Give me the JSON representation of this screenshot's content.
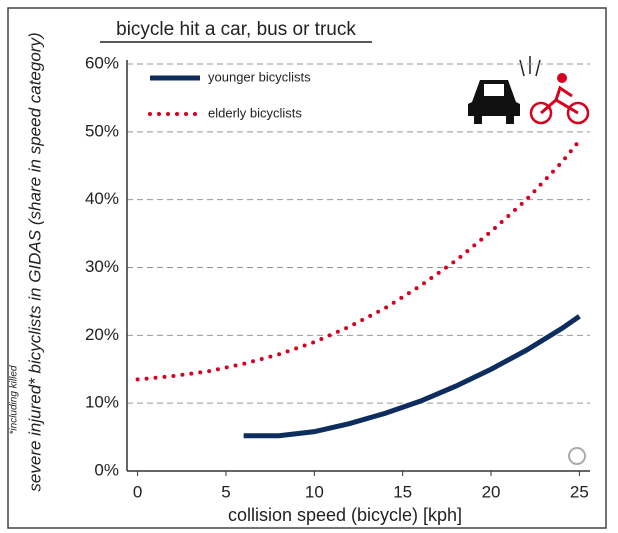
{
  "chart_data": {
    "type": "line",
    "title": "bicycle hit a car, bus or truck",
    "x_label": "collision speed (bicycle) [kph]",
    "y_label": "severe injured* bicyclists in GIDAS (share in speed category)",
    "footnote": "*including killed",
    "x": [
      0,
      2,
      4,
      6,
      8,
      10,
      12,
      14,
      16,
      18,
      20,
      22,
      24,
      25
    ],
    "series": [
      {
        "name": "younger bicyclists",
        "color": "#0d2d5e",
        "line_style": "solid",
        "values": [
          null,
          null,
          null,
          5.2,
          5.2,
          5.8,
          7,
          8.5,
          10.3,
          12.5,
          15,
          17.8,
          21,
          22.8
        ]
      },
      {
        "name": "elderly bicyclists",
        "color": "#d7001e",
        "line_style": "dotted",
        "values": [
          13.5,
          14,
          14.7,
          15.8,
          17.2,
          19,
          21.3,
          24,
          27.3,
          31,
          35.3,
          40,
          45.5,
          48.7
        ]
      }
    ],
    "xlim": [
      -0.6,
      25.6
    ],
    "xticks": [
      0,
      5,
      10,
      15,
      20,
      25
    ],
    "ylim": [
      0,
      60
    ],
    "yticks": [
      {
        "value": 0,
        "label": "0%"
      },
      {
        "value": 10,
        "label": "10%"
      },
      {
        "value": 20,
        "label": "20%"
      },
      {
        "value": 30,
        "label": "30%"
      },
      {
        "value": 40,
        "label": "40%"
      },
      {
        "value": 50,
        "label": "50%"
      },
      {
        "value": 60,
        "label": "60%"
      }
    ],
    "grid": true,
    "legend": "upper left"
  }
}
